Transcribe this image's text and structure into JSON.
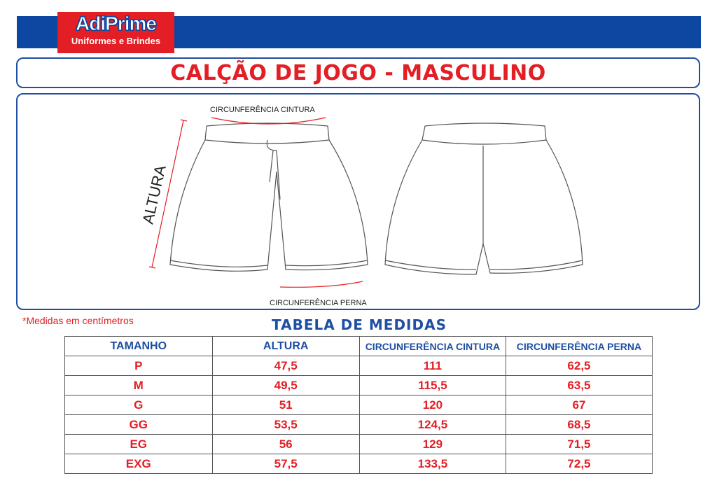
{
  "brand": {
    "name": "AdiPrime",
    "tagline": "Uniformes e Brindes",
    "colors": {
      "blue": "#0d47a1",
      "red": "#e31e24"
    }
  },
  "title": "CALÇÃO DE JOGO - MASCULINO",
  "diagram": {
    "waist_label": "CIRCUNFERÊNCIA CINTURA",
    "height_label": "ALTURA",
    "leg_label": "CIRCUNFERÊNCIA PERNA"
  },
  "note": "*Medidas em centímetros",
  "table": {
    "title": "TABELA DE MEDIDAS",
    "headers": [
      "TAMANHO",
      "ALTURA",
      "CIRCUNFERÊNCIA CINTURA",
      "CIRCUNFERÊNCIA PERNA"
    ],
    "rows": [
      [
        "P",
        "47,5",
        "111",
        "62,5"
      ],
      [
        "M",
        "49,5",
        "115,5",
        "63,5"
      ],
      [
        "G",
        "51",
        "120",
        "67"
      ],
      [
        "GG",
        "53,5",
        "124,5",
        "68,5"
      ],
      [
        "EG",
        "56",
        "129",
        "71,5"
      ],
      [
        "EXG",
        "57,5",
        "133,5",
        "72,5"
      ]
    ]
  }
}
